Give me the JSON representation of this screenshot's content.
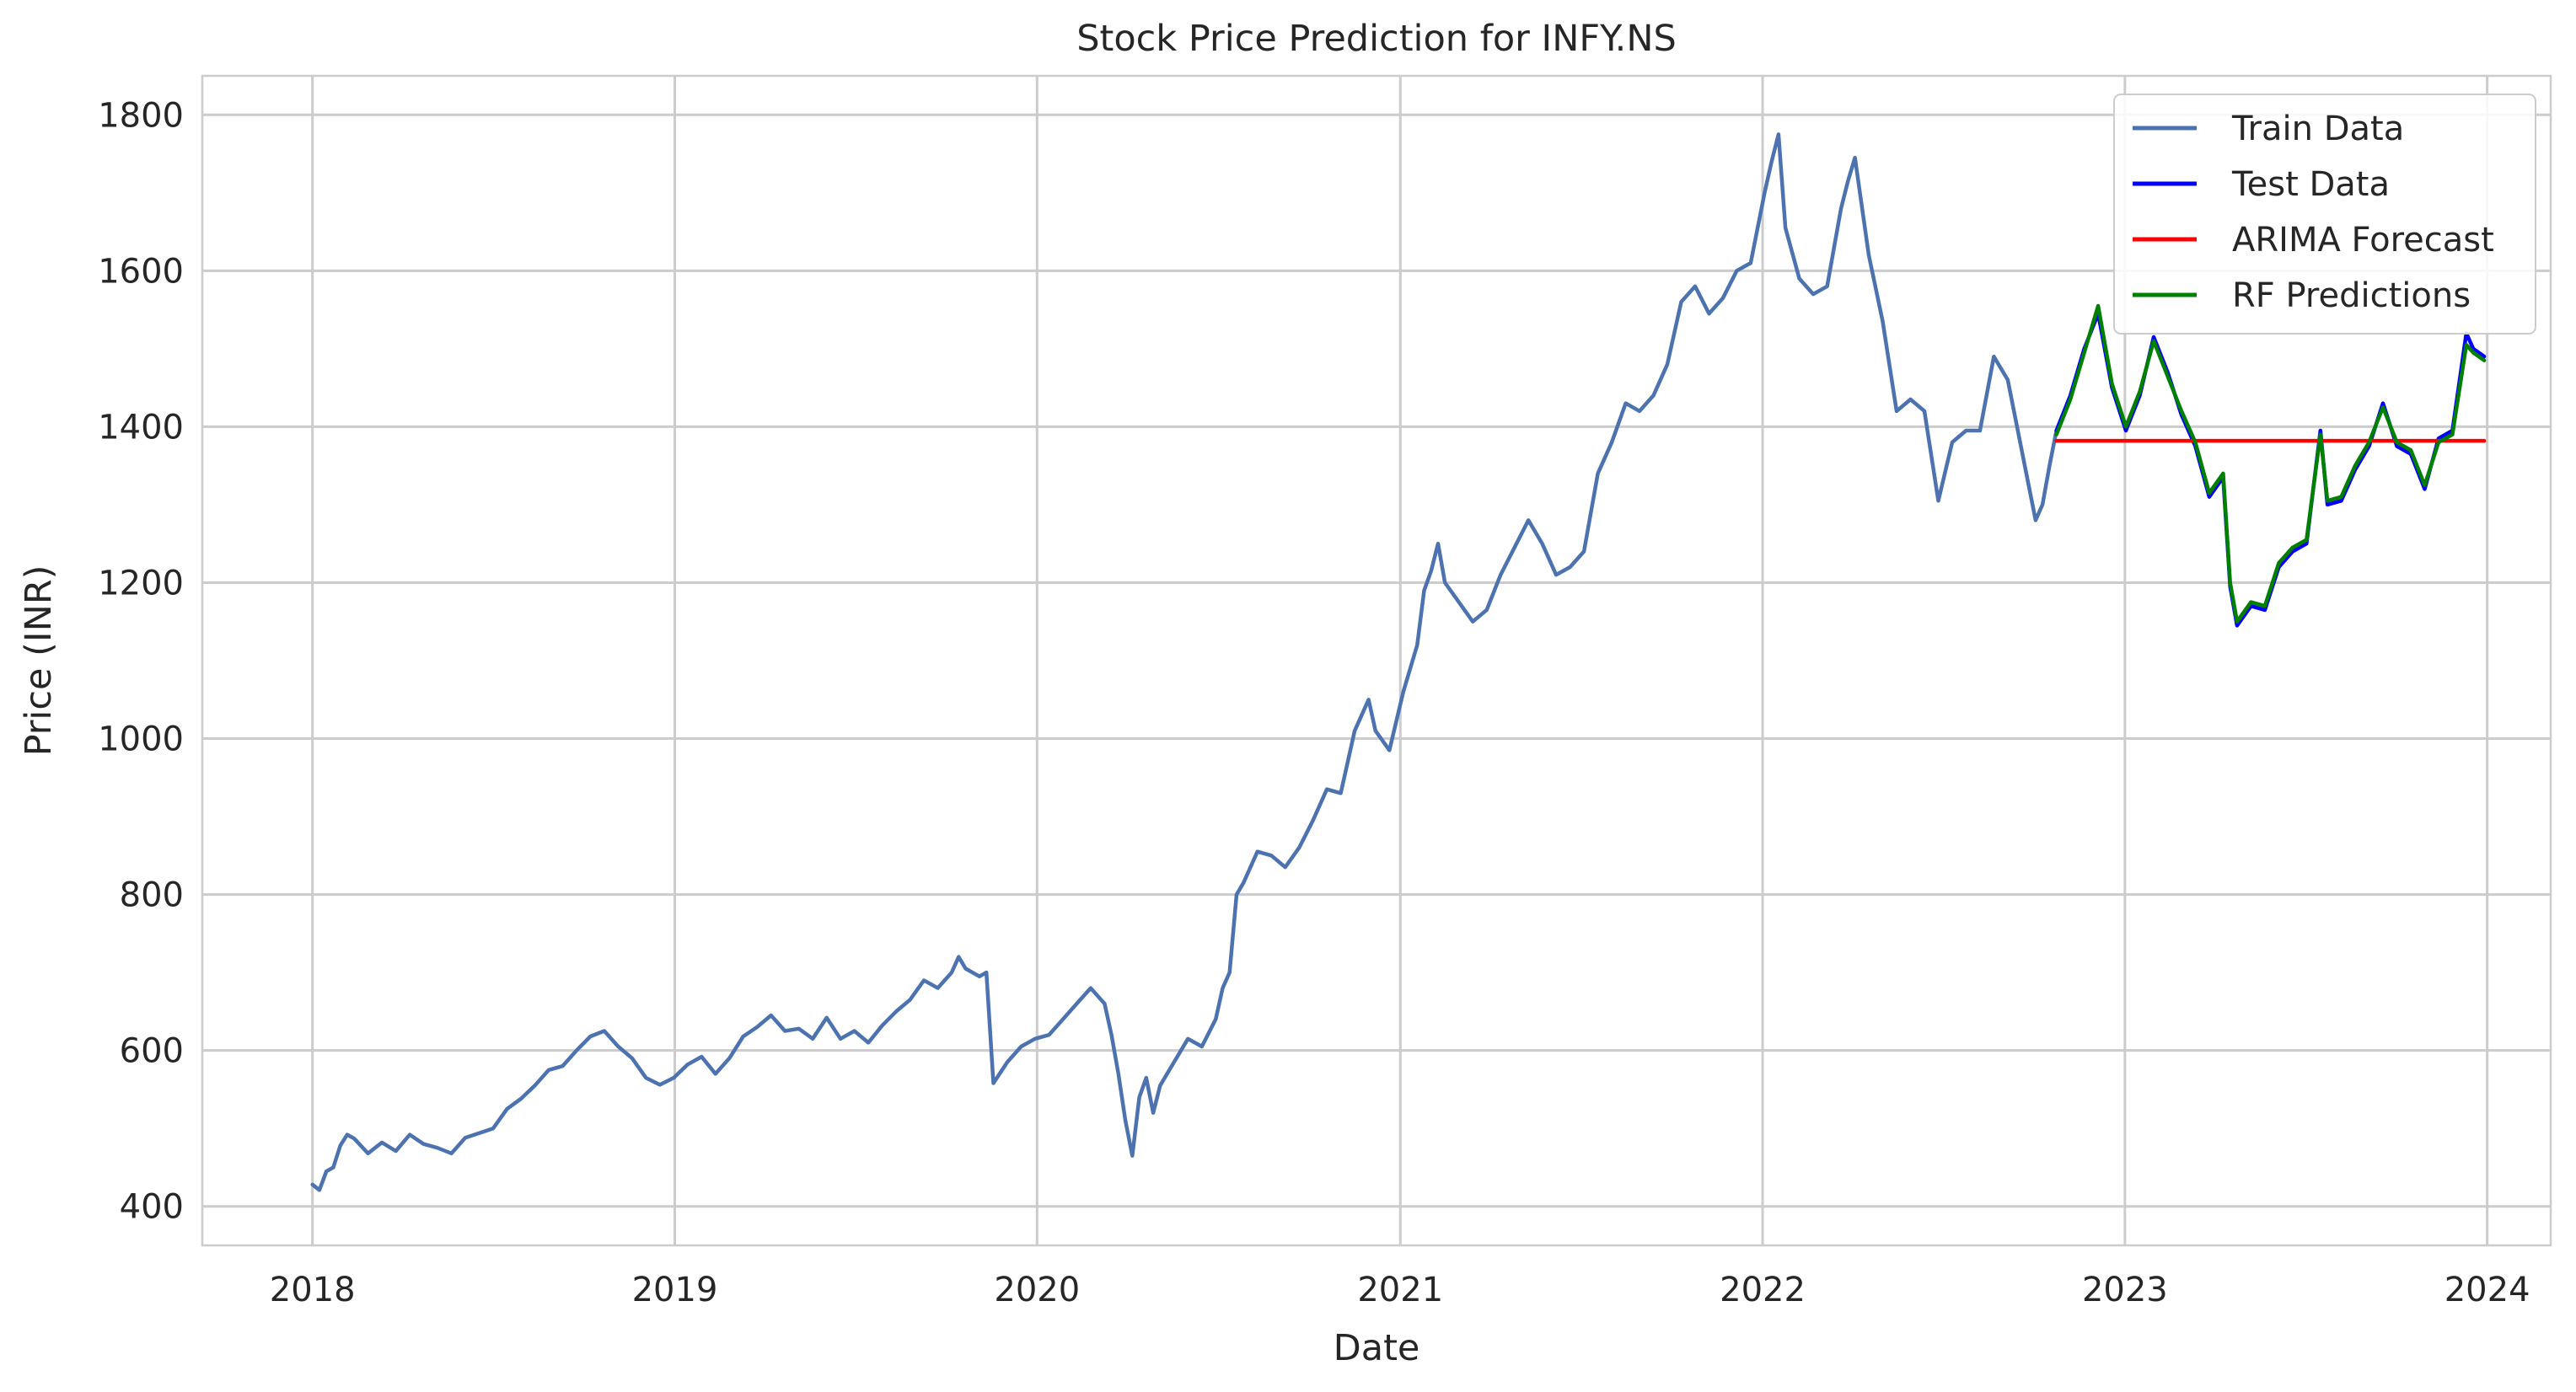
{
  "chart_data": {
    "type": "line",
    "title": "Stock Price Prediction for INFY.NS",
    "xlabel": "Date",
    "ylabel": "Price (INR)",
    "xlim": [
      "2017-09-12",
      "2024-03-05"
    ],
    "ylim": [
      350,
      1850
    ],
    "x_ticks": [
      "2018",
      "2019",
      "2020",
      "2021",
      "2022",
      "2023",
      "2024"
    ],
    "y_ticks": [
      400,
      600,
      800,
      1000,
      1200,
      1400,
      1600,
      1800
    ],
    "grid": true,
    "legend_position": "top-right",
    "series": [
      {
        "name": "Train Data",
        "color": "#4c72b0",
        "points": [
          [
            "2018-01-01",
            428
          ],
          [
            "2018-01-08",
            421
          ],
          [
            "2018-01-15",
            445
          ],
          [
            "2018-01-22",
            450
          ],
          [
            "2018-01-29",
            478
          ],
          [
            "2018-02-05",
            492
          ],
          [
            "2018-02-12",
            487
          ],
          [
            "2018-02-26",
            468
          ],
          [
            "2018-03-12",
            482
          ],
          [
            "2018-03-26",
            471
          ],
          [
            "2018-04-09",
            492
          ],
          [
            "2018-04-23",
            480
          ],
          [
            "2018-05-07",
            475
          ],
          [
            "2018-05-21",
            468
          ],
          [
            "2018-06-04",
            488
          ],
          [
            "2018-06-18",
            494
          ],
          [
            "2018-07-02",
            500
          ],
          [
            "2018-07-16",
            525
          ],
          [
            "2018-07-30",
            538
          ],
          [
            "2018-08-13",
            555
          ],
          [
            "2018-08-27",
            575
          ],
          [
            "2018-09-10",
            580
          ],
          [
            "2018-09-24",
            600
          ],
          [
            "2018-10-08",
            618
          ],
          [
            "2018-10-22",
            625
          ],
          [
            "2018-11-05",
            605
          ],
          [
            "2018-11-19",
            590
          ],
          [
            "2018-12-03",
            565
          ],
          [
            "2018-12-17",
            556
          ],
          [
            "2018-12-31",
            565
          ],
          [
            "2019-01-14",
            582
          ],
          [
            "2019-01-28",
            592
          ],
          [
            "2019-02-11",
            570
          ],
          [
            "2019-02-25",
            590
          ],
          [
            "2019-03-11",
            618
          ],
          [
            "2019-03-25",
            630
          ],
          [
            "2019-04-08",
            645
          ],
          [
            "2019-04-22",
            625
          ],
          [
            "2019-05-06",
            628
          ],
          [
            "2019-05-20",
            615
          ],
          [
            "2019-06-03",
            642
          ],
          [
            "2019-06-17",
            615
          ],
          [
            "2019-07-01",
            625
          ],
          [
            "2019-07-15",
            610
          ],
          [
            "2019-07-29",
            632
          ],
          [
            "2019-08-12",
            650
          ],
          [
            "2019-08-26",
            665
          ],
          [
            "2019-09-09",
            690
          ],
          [
            "2019-09-23",
            680
          ],
          [
            "2019-10-07",
            700
          ],
          [
            "2019-10-14",
            720
          ],
          [
            "2019-10-21",
            705
          ],
          [
            "2019-11-04",
            695
          ],
          [
            "2019-11-11",
            700
          ],
          [
            "2019-11-18",
            558
          ],
          [
            "2019-12-02",
            585
          ],
          [
            "2019-12-16",
            605
          ],
          [
            "2019-12-30",
            615
          ],
          [
            "2020-01-13",
            620
          ],
          [
            "2020-01-27",
            640
          ],
          [
            "2020-02-10",
            660
          ],
          [
            "2020-02-24",
            680
          ],
          [
            "2020-03-09",
            660
          ],
          [
            "2020-03-16",
            620
          ],
          [
            "2020-03-23",
            570
          ],
          [
            "2020-03-30",
            510
          ],
          [
            "2020-04-06",
            465
          ],
          [
            "2020-04-13",
            540
          ],
          [
            "2020-04-20",
            565
          ],
          [
            "2020-04-27",
            520
          ],
          [
            "2020-05-04",
            555
          ],
          [
            "2020-05-18",
            585
          ],
          [
            "2020-06-01",
            615
          ],
          [
            "2020-06-15",
            605
          ],
          [
            "2020-06-29",
            640
          ],
          [
            "2020-07-06",
            680
          ],
          [
            "2020-07-13",
            700
          ],
          [
            "2020-07-20",
            800
          ],
          [
            "2020-07-27",
            815
          ],
          [
            "2020-08-10",
            855
          ],
          [
            "2020-08-24",
            850
          ],
          [
            "2020-09-07",
            835
          ],
          [
            "2020-09-21",
            860
          ],
          [
            "2020-10-05",
            895
          ],
          [
            "2020-10-19",
            935
          ],
          [
            "2020-11-02",
            930
          ],
          [
            "2020-11-16",
            1010
          ],
          [
            "2020-11-30",
            1050
          ],
          [
            "2020-12-07",
            1010
          ],
          [
            "2020-12-21",
            985
          ],
          [
            "2021-01-04",
            1060
          ],
          [
            "2021-01-18",
            1120
          ],
          [
            "2021-01-25",
            1190
          ],
          [
            "2021-02-01",
            1215
          ],
          [
            "2021-02-08",
            1250
          ],
          [
            "2021-02-15",
            1200
          ],
          [
            "2021-03-01",
            1175
          ],
          [
            "2021-03-15",
            1150
          ],
          [
            "2021-03-29",
            1165
          ],
          [
            "2021-04-12",
            1210
          ],
          [
            "2021-04-26",
            1245
          ],
          [
            "2021-05-10",
            1280
          ],
          [
            "2021-05-24",
            1250
          ],
          [
            "2021-06-07",
            1210
          ],
          [
            "2021-06-21",
            1220
          ],
          [
            "2021-07-05",
            1240
          ],
          [
            "2021-07-19",
            1340
          ],
          [
            "2021-08-02",
            1380
          ],
          [
            "2021-08-16",
            1430
          ],
          [
            "2021-08-30",
            1420
          ],
          [
            "2021-09-13",
            1440
          ],
          [
            "2021-09-27",
            1480
          ],
          [
            "2021-10-11",
            1560
          ],
          [
            "2021-10-25",
            1580
          ],
          [
            "2021-11-08",
            1545
          ],
          [
            "2021-11-22",
            1565
          ],
          [
            "2021-12-06",
            1600
          ],
          [
            "2021-12-20",
            1610
          ],
          [
            "2022-01-03",
            1700
          ],
          [
            "2022-01-10",
            1740
          ],
          [
            "2022-01-17",
            1775
          ],
          [
            "2022-01-24",
            1655
          ],
          [
            "2022-02-07",
            1590
          ],
          [
            "2022-02-21",
            1570
          ],
          [
            "2022-03-07",
            1580
          ],
          [
            "2022-03-21",
            1680
          ],
          [
            "2022-03-28",
            1715
          ],
          [
            "2022-04-04",
            1745
          ],
          [
            "2022-04-18",
            1620
          ],
          [
            "2022-05-02",
            1535
          ],
          [
            "2022-05-16",
            1420
          ],
          [
            "2022-05-30",
            1435
          ],
          [
            "2022-06-13",
            1420
          ],
          [
            "2022-06-27",
            1305
          ],
          [
            "2022-07-11",
            1380
          ],
          [
            "2022-07-25",
            1395
          ],
          [
            "2022-08-08",
            1395
          ],
          [
            "2022-08-22",
            1490
          ],
          [
            "2022-09-05",
            1460
          ],
          [
            "2022-09-19",
            1370
          ],
          [
            "2022-10-03",
            1280
          ],
          [
            "2022-10-10",
            1300
          ],
          [
            "2022-10-17",
            1350
          ],
          [
            "2022-10-24",
            1395
          ]
        ]
      },
      {
        "name": "Test Data",
        "color": "#0000ff",
        "points": [
          [
            "2022-10-24",
            1395
          ],
          [
            "2022-11-07",
            1440
          ],
          [
            "2022-11-21",
            1500
          ],
          [
            "2022-12-05",
            1545
          ],
          [
            "2022-12-19",
            1450
          ],
          [
            "2023-01-02",
            1395
          ],
          [
            "2023-01-16",
            1440
          ],
          [
            "2023-01-30",
            1515
          ],
          [
            "2023-02-13",
            1470
          ],
          [
            "2023-02-27",
            1415
          ],
          [
            "2023-03-13",
            1375
          ],
          [
            "2023-03-27",
            1310
          ],
          [
            "2023-04-10",
            1335
          ],
          [
            "2023-04-17",
            1195
          ],
          [
            "2023-04-24",
            1145
          ],
          [
            "2023-05-08",
            1170
          ],
          [
            "2023-05-22",
            1165
          ],
          [
            "2023-06-05",
            1220
          ],
          [
            "2023-06-19",
            1240
          ],
          [
            "2023-07-03",
            1250
          ],
          [
            "2023-07-17",
            1395
          ],
          [
            "2023-07-24",
            1300
          ],
          [
            "2023-08-07",
            1305
          ],
          [
            "2023-08-21",
            1345
          ],
          [
            "2023-09-04",
            1375
          ],
          [
            "2023-09-18",
            1430
          ],
          [
            "2023-10-02",
            1375
          ],
          [
            "2023-10-16",
            1365
          ],
          [
            "2023-10-30",
            1320
          ],
          [
            "2023-11-13",
            1385
          ],
          [
            "2023-11-27",
            1395
          ],
          [
            "2023-12-11",
            1520
          ],
          [
            "2023-12-18",
            1500
          ],
          [
            "2023-12-29",
            1490
          ]
        ]
      },
      {
        "name": "ARIMA Forecast",
        "color": "#ff0000",
        "points": [
          [
            "2022-10-24",
            1382
          ],
          [
            "2023-12-29",
            1382
          ]
        ]
      },
      {
        "name": "RF Predictions",
        "color": "#008000",
        "points": [
          [
            "2022-10-24",
            1390
          ],
          [
            "2022-11-07",
            1435
          ],
          [
            "2022-11-21",
            1495
          ],
          [
            "2022-12-05",
            1555
          ],
          [
            "2022-12-19",
            1455
          ],
          [
            "2023-01-02",
            1400
          ],
          [
            "2023-01-16",
            1445
          ],
          [
            "2023-01-30",
            1510
          ],
          [
            "2023-02-13",
            1465
          ],
          [
            "2023-02-27",
            1420
          ],
          [
            "2023-03-13",
            1380
          ],
          [
            "2023-03-27",
            1315
          ],
          [
            "2023-04-10",
            1340
          ],
          [
            "2023-04-17",
            1200
          ],
          [
            "2023-04-24",
            1150
          ],
          [
            "2023-05-08",
            1175
          ],
          [
            "2023-05-22",
            1170
          ],
          [
            "2023-06-05",
            1225
          ],
          [
            "2023-06-19",
            1245
          ],
          [
            "2023-07-03",
            1255
          ],
          [
            "2023-07-17",
            1390
          ],
          [
            "2023-07-24",
            1305
          ],
          [
            "2023-08-07",
            1310
          ],
          [
            "2023-08-21",
            1350
          ],
          [
            "2023-09-04",
            1380
          ],
          [
            "2023-09-18",
            1425
          ],
          [
            "2023-10-02",
            1380
          ],
          [
            "2023-10-16",
            1370
          ],
          [
            "2023-10-30",
            1325
          ],
          [
            "2023-11-13",
            1380
          ],
          [
            "2023-11-27",
            1390
          ],
          [
            "2023-12-11",
            1505
          ],
          [
            "2023-12-18",
            1495
          ],
          [
            "2023-12-29",
            1485
          ]
        ]
      }
    ]
  }
}
